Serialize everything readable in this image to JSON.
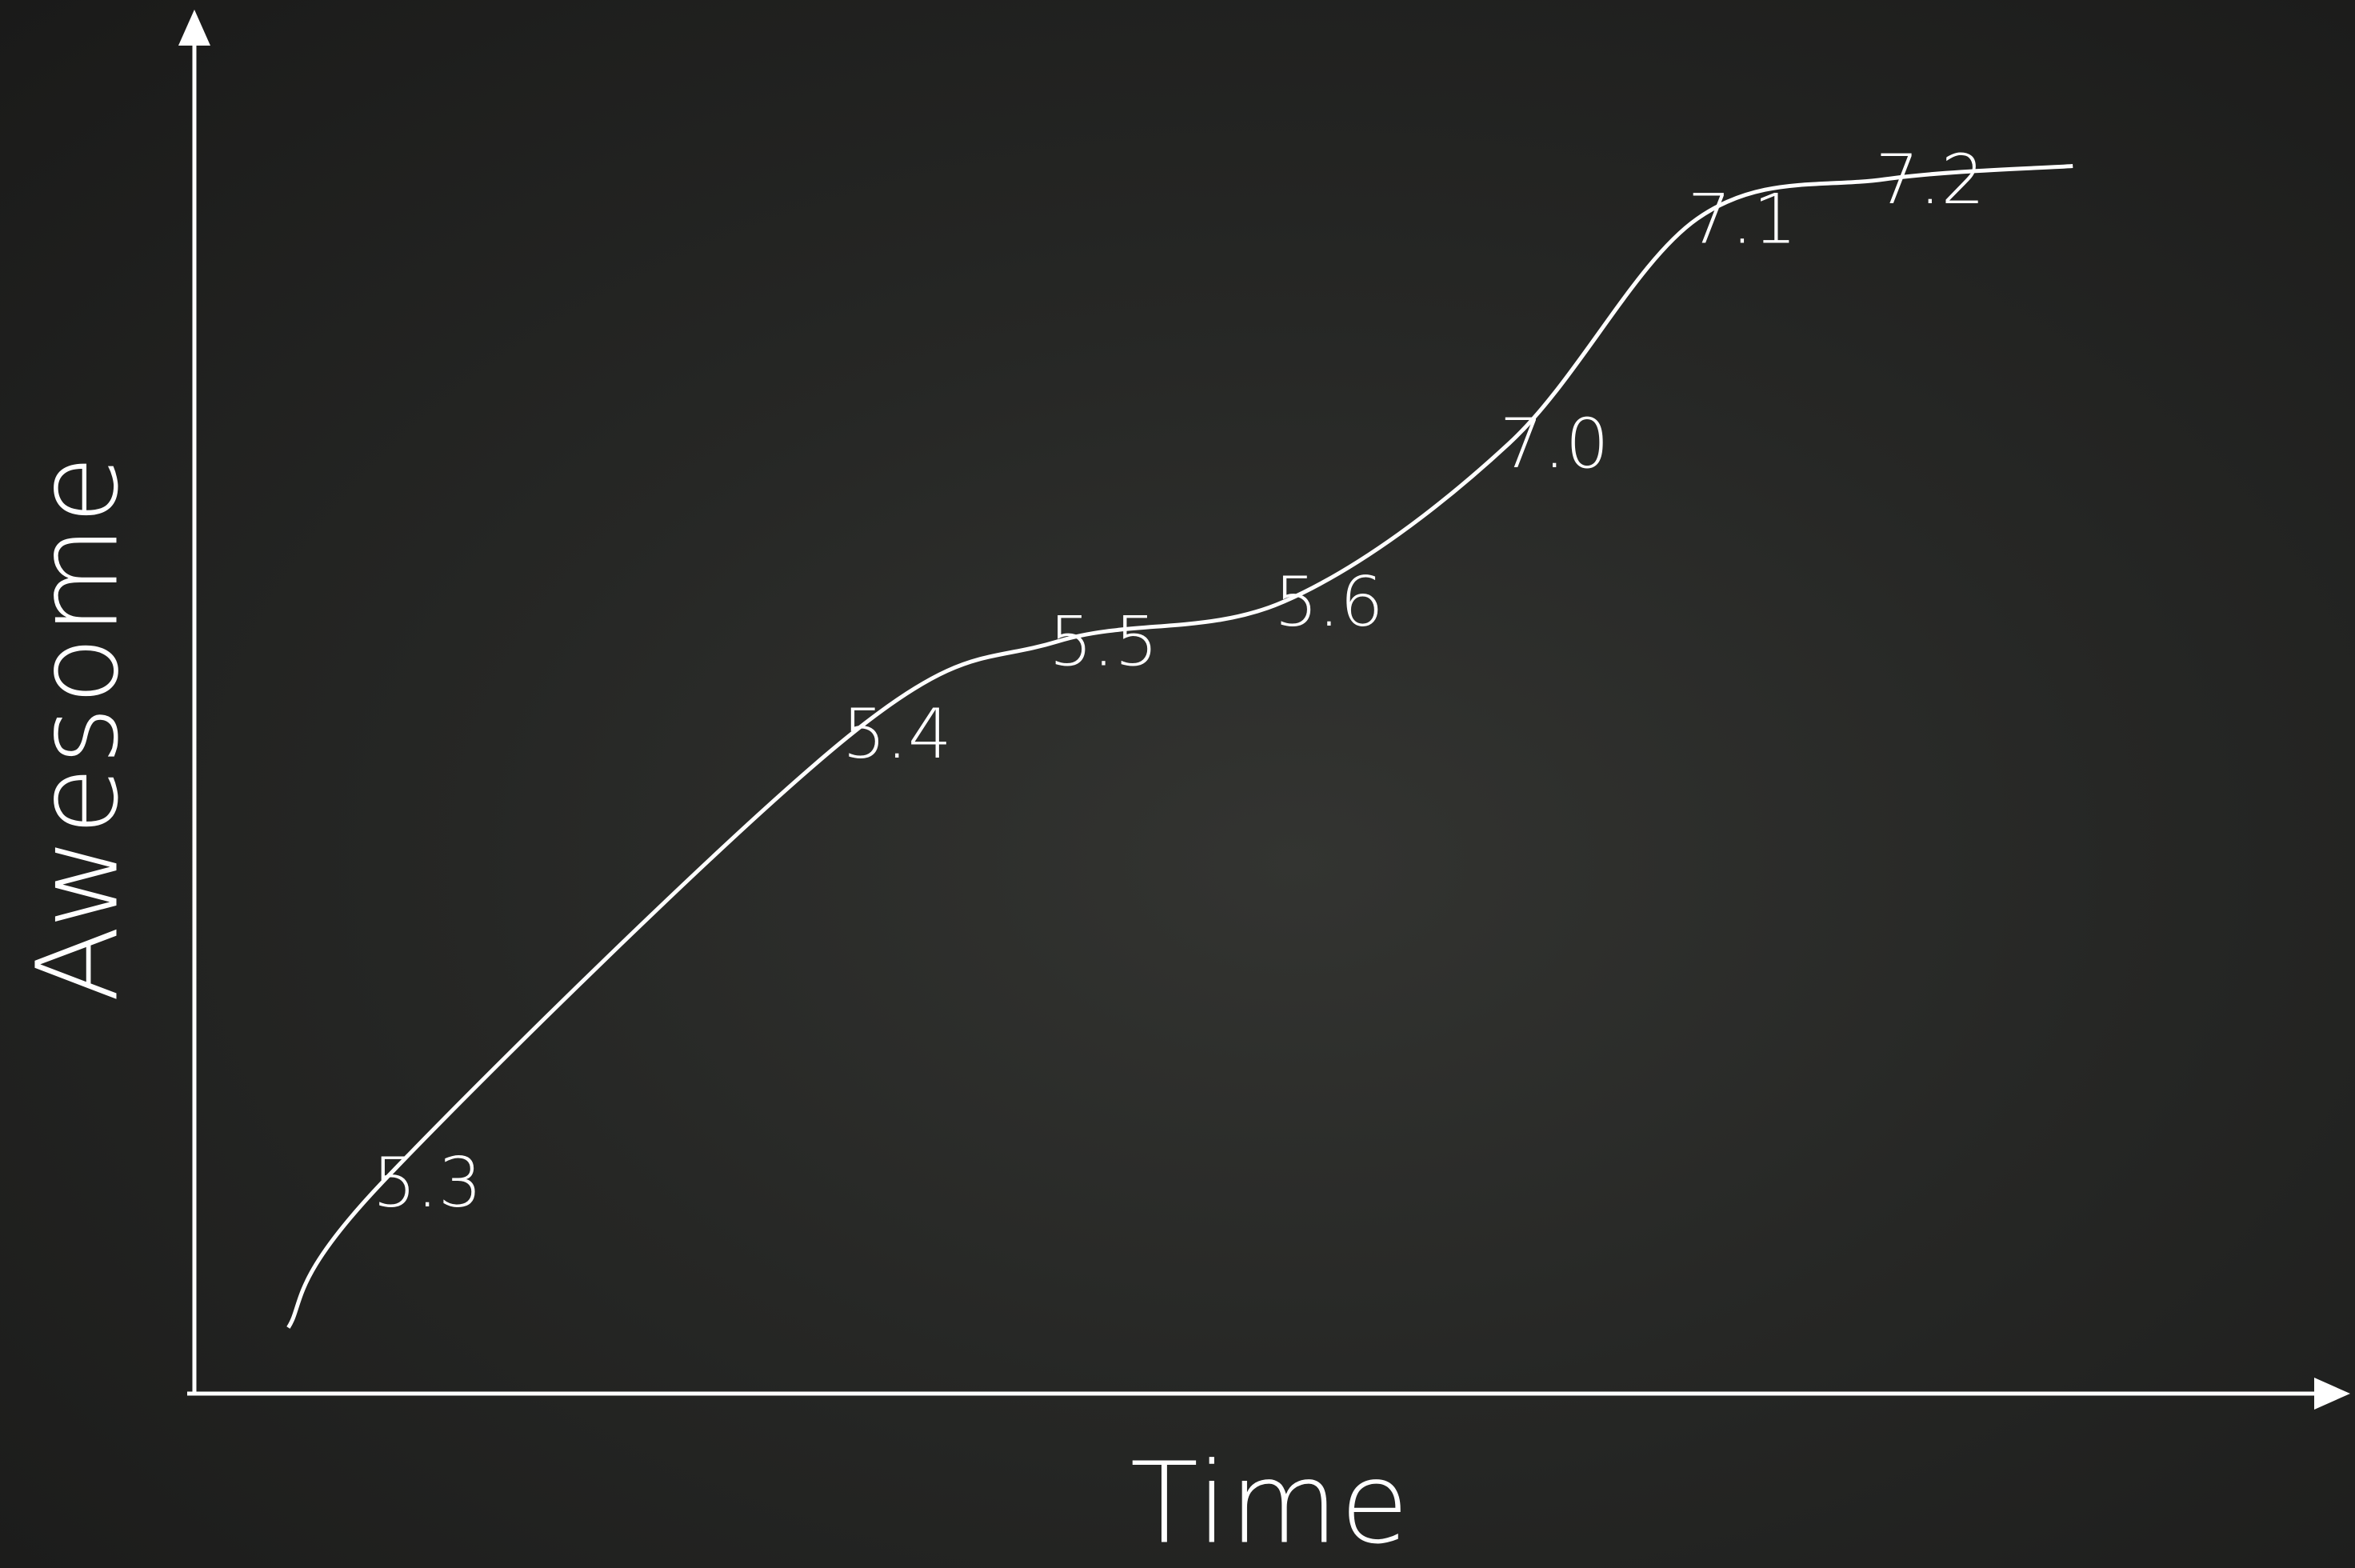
{
  "chart_data": {
    "type": "line",
    "title": "",
    "xlabel": "Time",
    "ylabel": "Awesome",
    "ylim": [
      0,
      10
    ],
    "grid": false,
    "legend": "none",
    "axis_color": "#ffffff",
    "line_color": "#ffffff",
    "background_color": "#262725",
    "series": [
      {
        "points": [
          {
            "x": 0.5,
            "y": 0.5,
            "label": ""
          },
          {
            "x": 1.0,
            "y": 1.6,
            "label": "5.3"
          },
          {
            "x": 3.5,
            "y": 5.0,
            "label": "5.4"
          },
          {
            "x": 4.6,
            "y": 5.7,
            "label": "5.5"
          },
          {
            "x": 5.8,
            "y": 6.0,
            "label": "5.6"
          },
          {
            "x": 7.0,
            "y": 7.2,
            "label": "7.0"
          },
          {
            "x": 8.0,
            "y": 8.9,
            "label": "7.1"
          },
          {
            "x": 9.0,
            "y": 9.2,
            "label": "7.2"
          },
          {
            "x": 10.0,
            "y": 9.3,
            "label": ""
          }
        ]
      }
    ],
    "xlim": [
      0,
      11.2
    ]
  }
}
